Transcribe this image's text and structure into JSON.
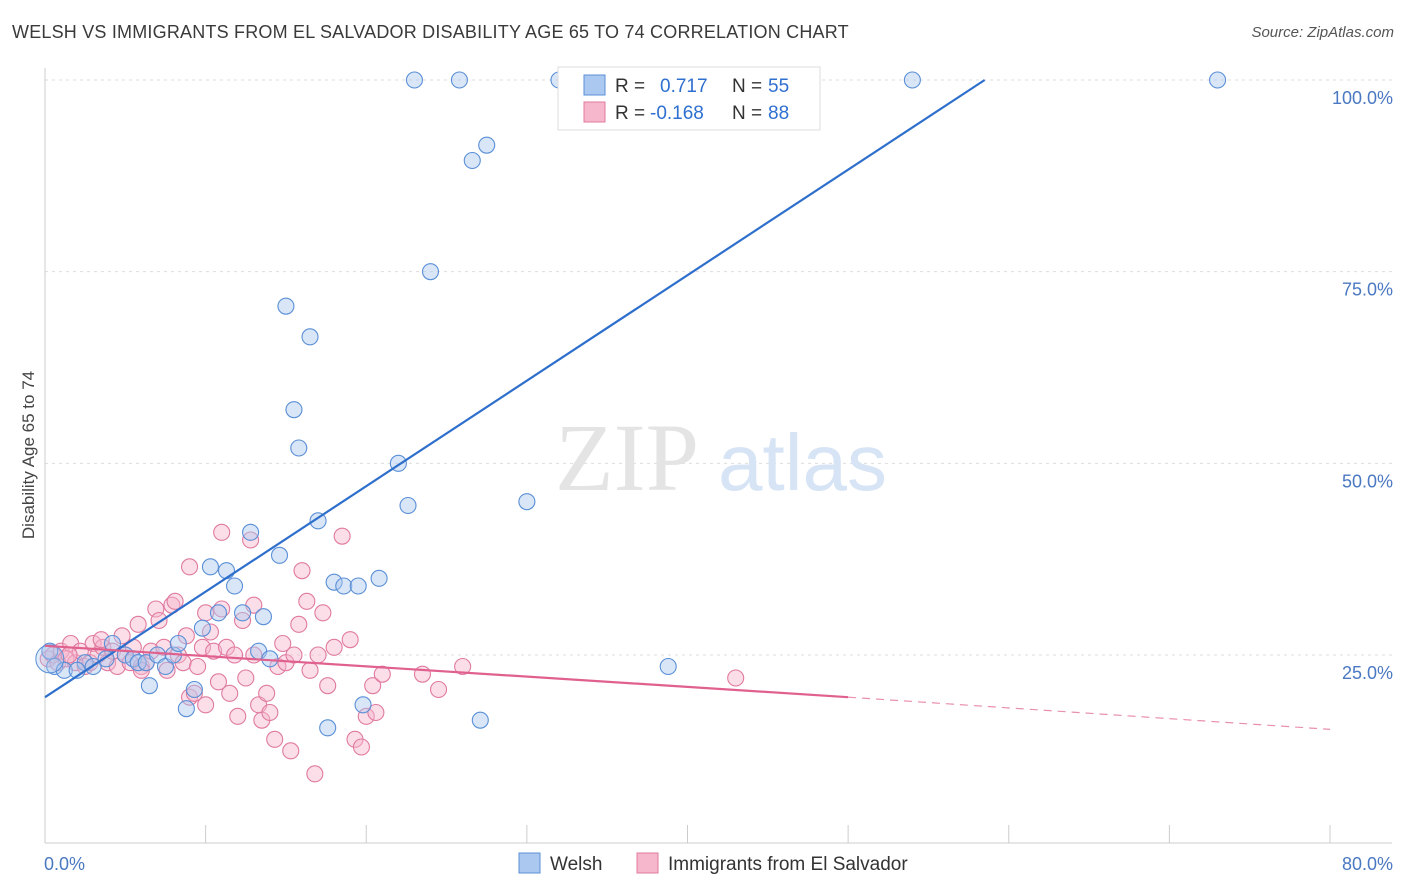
{
  "header": {
    "title": "WELSH VS IMMIGRANTS FROM EL SALVADOR DISABILITY AGE 65 TO 74 CORRELATION CHART",
    "source": "Source: ZipAtlas.com"
  },
  "watermark": {
    "zip": "ZIP",
    "atlas": "atlas"
  },
  "colors": {
    "welsh_fill": "#aac8f0",
    "welsh_stroke": "#5a8fd6",
    "welsh_line": "#2e6fcc",
    "salv_fill": "#f6b6cb",
    "salv_stroke": "#e07a9f",
    "salv_line": "#e0608e",
    "grid": "#dddddd",
    "axis_label": "#4a78c2"
  },
  "legend": {
    "rows": [
      {
        "r_label": "R =",
        "r_value": "0.717",
        "n_label": "N =",
        "n_value": "55"
      },
      {
        "r_label": "R =",
        "r_value": "-0.168",
        "n_label": "N =",
        "n_value": "88"
      }
    ]
  },
  "chart_data": {
    "type": "scatter",
    "title": "WELSH VS IMMIGRANTS FROM EL SALVADOR DISABILITY AGE 65 TO 74 CORRELATION CHART",
    "xlabel": "",
    "ylabel": "Disability Age 65 to 74",
    "xlim": [
      0,
      80
    ],
    "ylim": [
      0,
      102
    ],
    "x_tick_labels": [
      "0.0%",
      "80.0%"
    ],
    "y_ticks": [
      25,
      50,
      75,
      100
    ],
    "y_tick_labels": [
      "25.0%",
      "50.0%",
      "75.0%",
      "100.0%"
    ],
    "grid": true,
    "legend_position": "top-center",
    "series": [
      {
        "name": "Welsh",
        "R": 0.717,
        "N": 55,
        "trend": {
          "x0": 0,
          "y0": 19.5,
          "x1": 58.5,
          "y1": 100
        },
        "points": [
          [
            0.3,
            25.5
          ],
          [
            0.6,
            23.5
          ],
          [
            1.2,
            23.0
          ],
          [
            2.5,
            24.0
          ],
          [
            3.0,
            23.5
          ],
          [
            3.8,
            24.5
          ],
          [
            4.2,
            26.5
          ],
          [
            5.0,
            25.0
          ],
          [
            5.5,
            24.5
          ],
          [
            5.8,
            24.0
          ],
          [
            6.3,
            24.0
          ],
          [
            6.5,
            21.0
          ],
          [
            7.0,
            25.0
          ],
          [
            7.5,
            23.5
          ],
          [
            8.0,
            25.0
          ],
          [
            8.3,
            26.5
          ],
          [
            8.8,
            18.0
          ],
          [
            9.3,
            20.5
          ],
          [
            9.8,
            28.5
          ],
          [
            10.3,
            36.5
          ],
          [
            10.8,
            30.5
          ],
          [
            11.3,
            36.0
          ],
          [
            11.8,
            34.0
          ],
          [
            12.3,
            30.5
          ],
          [
            12.8,
            41.0
          ],
          [
            13.3,
            25.5
          ],
          [
            13.6,
            30.0
          ],
          [
            14.0,
            24.5
          ],
          [
            14.6,
            38.0
          ],
          [
            15.0,
            70.5
          ],
          [
            15.5,
            57.0
          ],
          [
            15.8,
            52.0
          ],
          [
            17.0,
            42.5
          ],
          [
            17.6,
            15.5
          ],
          [
            18.0,
            34.5
          ],
          [
            18.6,
            34.0
          ],
          [
            19.5,
            34.0
          ],
          [
            19.8,
            18.5
          ],
          [
            20.8,
            35.0
          ],
          [
            22.0,
            50.0
          ],
          [
            22.6,
            44.5
          ],
          [
            23.0,
            100.0
          ],
          [
            24.0,
            75.0
          ],
          [
            25.8,
            100.0
          ],
          [
            26.6,
            89.5
          ],
          [
            27.1,
            16.5
          ],
          [
            27.5,
            91.5
          ],
          [
            30.0,
            45.0
          ],
          [
            32.0,
            100.0
          ],
          [
            37.5,
            100.0
          ],
          [
            38.8,
            23.5
          ],
          [
            54.0,
            100.0
          ],
          [
            73.0,
            100.0
          ],
          [
            2.0,
            23.0
          ],
          [
            16.5,
            66.5
          ]
        ]
      },
      {
        "name": "Immigrants from El Salvador",
        "R": -0.168,
        "N": 88,
        "trend": {
          "x0": 0,
          "y0": 26.2,
          "x1": 50,
          "y1": 19.5
        },
        "trend_dashed": {
          "x0": 50,
          "y0": 19.5,
          "x1": 80,
          "y1": 15.3
        },
        "points": [
          [
            0.2,
            24.5
          ],
          [
            0.5,
            25.0
          ],
          [
            0.8,
            24.0
          ],
          [
            1.0,
            25.5
          ],
          [
            1.3,
            24.5
          ],
          [
            1.6,
            26.5
          ],
          [
            1.9,
            24.0
          ],
          [
            2.2,
            25.5
          ],
          [
            2.5,
            23.5
          ],
          [
            2.8,
            24.0
          ],
          [
            3.0,
            26.5
          ],
          [
            3.3,
            25.0
          ],
          [
            3.6,
            26.0
          ],
          [
            3.9,
            24.0
          ],
          [
            4.2,
            25.5
          ],
          [
            4.5,
            23.5
          ],
          [
            4.8,
            27.5
          ],
          [
            5.0,
            25.0
          ],
          [
            5.3,
            24.0
          ],
          [
            5.5,
            26.0
          ],
          [
            5.8,
            29.0
          ],
          [
            6.0,
            23.5
          ],
          [
            6.3,
            24.0
          ],
          [
            6.6,
            25.5
          ],
          [
            6.9,
            31.0
          ],
          [
            7.1,
            29.5
          ],
          [
            7.4,
            26.0
          ],
          [
            7.6,
            23.0
          ],
          [
            7.9,
            31.5
          ],
          [
            8.1,
            32.0
          ],
          [
            8.3,
            25.0
          ],
          [
            8.6,
            24.0
          ],
          [
            8.8,
            27.5
          ],
          [
            9.0,
            19.5
          ],
          [
            9.3,
            20.0
          ],
          [
            9.5,
            23.5
          ],
          [
            9.8,
            26.0
          ],
          [
            10.0,
            18.5
          ],
          [
            10.3,
            28.0
          ],
          [
            10.5,
            25.5
          ],
          [
            10.8,
            21.5
          ],
          [
            11.0,
            31.0
          ],
          [
            11.3,
            26.0
          ],
          [
            11.5,
            20.0
          ],
          [
            11.8,
            25.0
          ],
          [
            12.0,
            17.0
          ],
          [
            12.3,
            29.5
          ],
          [
            12.5,
            22.0
          ],
          [
            12.8,
            40.0
          ],
          [
            13.0,
            25.0
          ],
          [
            13.3,
            18.5
          ],
          [
            13.5,
            16.5
          ],
          [
            13.8,
            20.0
          ],
          [
            14.0,
            17.5
          ],
          [
            14.3,
            14.0
          ],
          [
            14.5,
            23.5
          ],
          [
            14.8,
            26.5
          ],
          [
            15.0,
            24.0
          ],
          [
            15.3,
            12.5
          ],
          [
            15.5,
            25.0
          ],
          [
            15.8,
            29.0
          ],
          [
            16.0,
            36.0
          ],
          [
            16.3,
            32.0
          ],
          [
            16.5,
            23.0
          ],
          [
            16.8,
            9.5
          ],
          [
            17.0,
            25.0
          ],
          [
            17.3,
            30.5
          ],
          [
            17.6,
            21.0
          ],
          [
            18.0,
            26.0
          ],
          [
            18.5,
            40.5
          ],
          [
            19.0,
            27.0
          ],
          [
            19.3,
            14.0
          ],
          [
            19.7,
            13.0
          ],
          [
            20.0,
            17.0
          ],
          [
            20.4,
            21.0
          ],
          [
            20.6,
            17.5
          ],
          [
            21.0,
            22.5
          ],
          [
            23.5,
            22.5
          ],
          [
            24.5,
            20.5
          ],
          [
            26.0,
            23.5
          ],
          [
            43.0,
            22.0
          ],
          [
            11.0,
            41.0
          ],
          [
            9.0,
            36.5
          ],
          [
            6.0,
            23.0
          ],
          [
            3.5,
            27.0
          ],
          [
            13.0,
            31.5
          ],
          [
            10.0,
            30.5
          ],
          [
            1.5,
            25.0
          ]
        ]
      }
    ]
  },
  "bottom_legend": {
    "items": [
      {
        "label": "Welsh"
      },
      {
        "label": "Immigrants from El Salvador"
      }
    ]
  }
}
